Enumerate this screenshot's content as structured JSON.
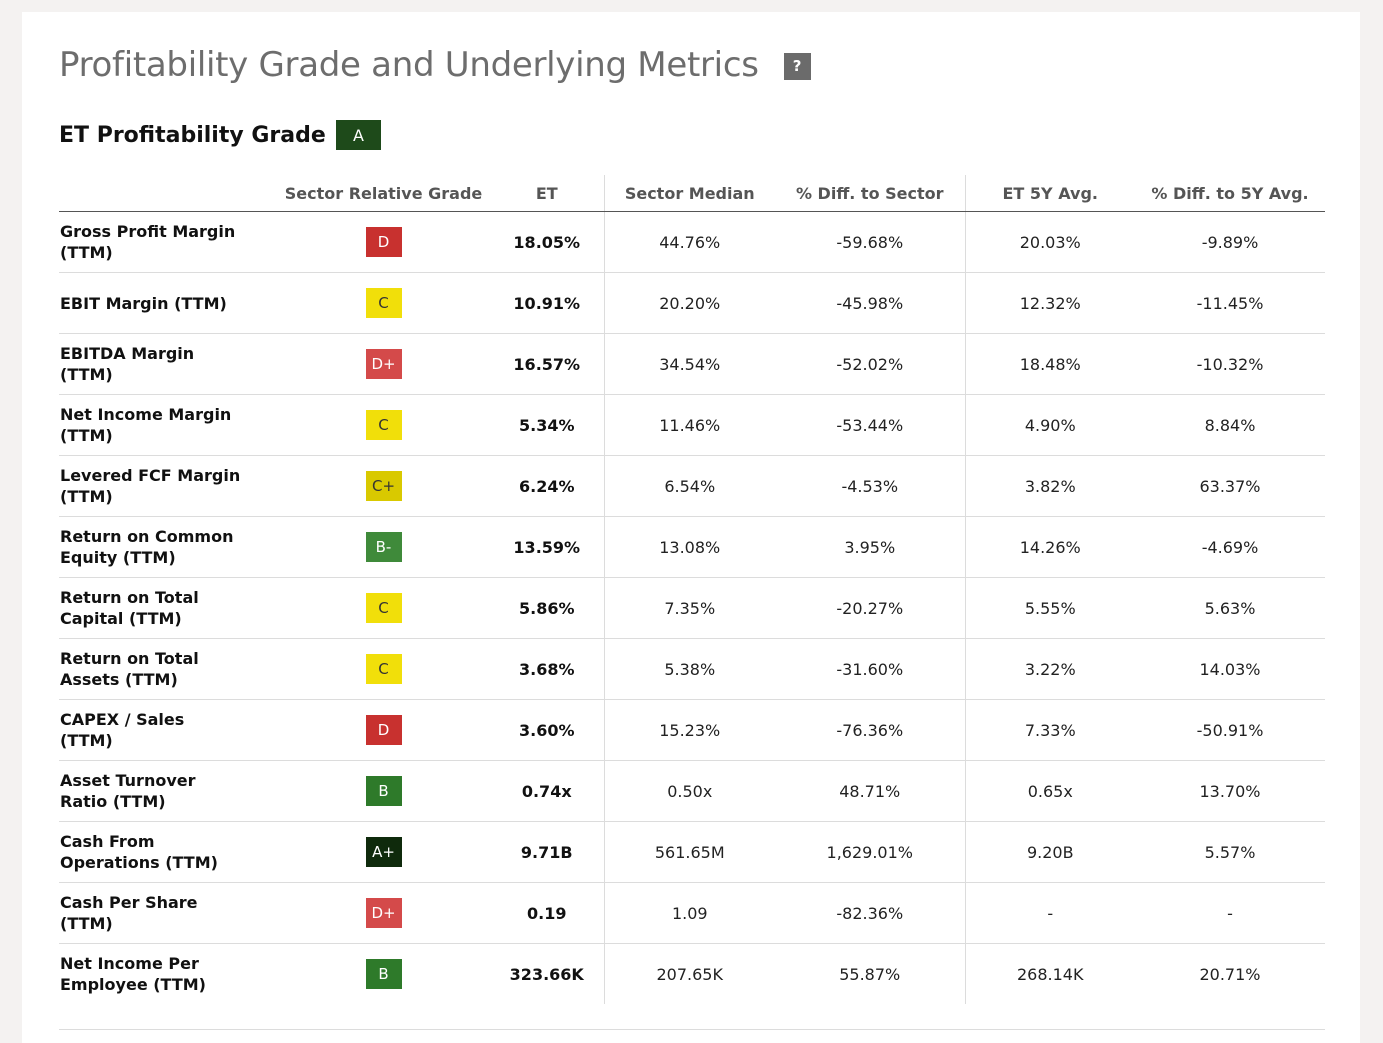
{
  "header": {
    "title": "Profitability Grade and Underlying Metrics",
    "help_label": "?"
  },
  "grade": {
    "label": "ET Profitability Grade",
    "value": "A"
  },
  "columns": [
    "",
    "Sector Relative Grade",
    "ET",
    "Sector Median",
    "% Diff. to Sector",
    "ET 5Y Avg.",
    "% Diff. to 5Y Avg."
  ],
  "grade_colors": {
    "A+": "#0f2a0c",
    "A": "#1e4a1a",
    "B": "#2e7a2a",
    "B-": "#3f8a3a",
    "C+": "#d9c900",
    "C": "#f1df0a",
    "D+": "#d44a4a",
    "D": "#c8312f"
  },
  "grade_text_colors": {
    "A+": "#ffffff",
    "A": "#ffffff",
    "B": "#ffffff",
    "B-": "#ffffff",
    "C+": "#333333",
    "C": "#333333",
    "D+": "#ffffff",
    "D": "#ffffff"
  },
  "rows": [
    {
      "metric": [
        "Gross Profit Margin",
        "(TTM)"
      ],
      "grade": "D",
      "et": "18.05%",
      "sector_median": "44.76%",
      "diff_sector": "-59.68%",
      "avg5y": "20.03%",
      "diff_5y": "-9.89%"
    },
    {
      "metric": [
        "EBIT Margin (TTM)"
      ],
      "grade": "C",
      "et": "10.91%",
      "sector_median": "20.20%",
      "diff_sector": "-45.98%",
      "avg5y": "12.32%",
      "diff_5y": "-11.45%"
    },
    {
      "metric": [
        "EBITDA Margin",
        "(TTM)"
      ],
      "grade": "D+",
      "et": "16.57%",
      "sector_median": "34.54%",
      "diff_sector": "-52.02%",
      "avg5y": "18.48%",
      "diff_5y": "-10.32%"
    },
    {
      "metric": [
        "Net Income Margin",
        "(TTM)"
      ],
      "grade": "C",
      "et": "5.34%",
      "sector_median": "11.46%",
      "diff_sector": "-53.44%",
      "avg5y": "4.90%",
      "diff_5y": "8.84%"
    },
    {
      "metric": [
        "Levered FCF Margin",
        "(TTM)"
      ],
      "grade": "C+",
      "et": "6.24%",
      "sector_median": "6.54%",
      "diff_sector": "-4.53%",
      "avg5y": "3.82%",
      "diff_5y": "63.37%"
    },
    {
      "metric": [
        "Return on Common",
        "Equity (TTM)"
      ],
      "grade": "B-",
      "et": "13.59%",
      "sector_median": "13.08%",
      "diff_sector": "3.95%",
      "avg5y": "14.26%",
      "diff_5y": "-4.69%"
    },
    {
      "metric": [
        "Return on Total",
        "Capital (TTM)"
      ],
      "grade": "C",
      "et": "5.86%",
      "sector_median": "7.35%",
      "diff_sector": "-20.27%",
      "avg5y": "5.55%",
      "diff_5y": "5.63%"
    },
    {
      "metric": [
        "Return on Total",
        "Assets (TTM)"
      ],
      "grade": "C",
      "et": "3.68%",
      "sector_median": "5.38%",
      "diff_sector": "-31.60%",
      "avg5y": "3.22%",
      "diff_5y": "14.03%"
    },
    {
      "metric": [
        "CAPEX / Sales",
        "(TTM)"
      ],
      "grade": "D",
      "et": "3.60%",
      "sector_median": "15.23%",
      "diff_sector": "-76.36%",
      "avg5y": "7.33%",
      "diff_5y": "-50.91%"
    },
    {
      "metric": [
        "Asset Turnover",
        "Ratio (TTM)"
      ],
      "grade": "B",
      "et": "0.74x",
      "sector_median": "0.50x",
      "diff_sector": "48.71%",
      "avg5y": "0.65x",
      "diff_5y": "13.70%"
    },
    {
      "metric": [
        "Cash From",
        "Operations (TTM)"
      ],
      "grade": "A+",
      "et": "9.71B",
      "sector_median": "561.65M",
      "diff_sector": "1,629.01%",
      "avg5y": "9.20B",
      "diff_5y": "5.57%"
    },
    {
      "metric": [
        "Cash Per Share",
        "(TTM)"
      ],
      "grade": "D+",
      "et": "0.19",
      "sector_median": "1.09",
      "diff_sector": "-82.36%",
      "avg5y": "-",
      "diff_5y": "-"
    },
    {
      "metric": [
        "Net Income Per",
        "Employee (TTM)"
      ],
      "grade": "B",
      "et": "323.66K",
      "sector_median": "207.65K",
      "diff_sector": "55.87%",
      "avg5y": "268.14K",
      "diff_5y": "20.71%"
    }
  ]
}
